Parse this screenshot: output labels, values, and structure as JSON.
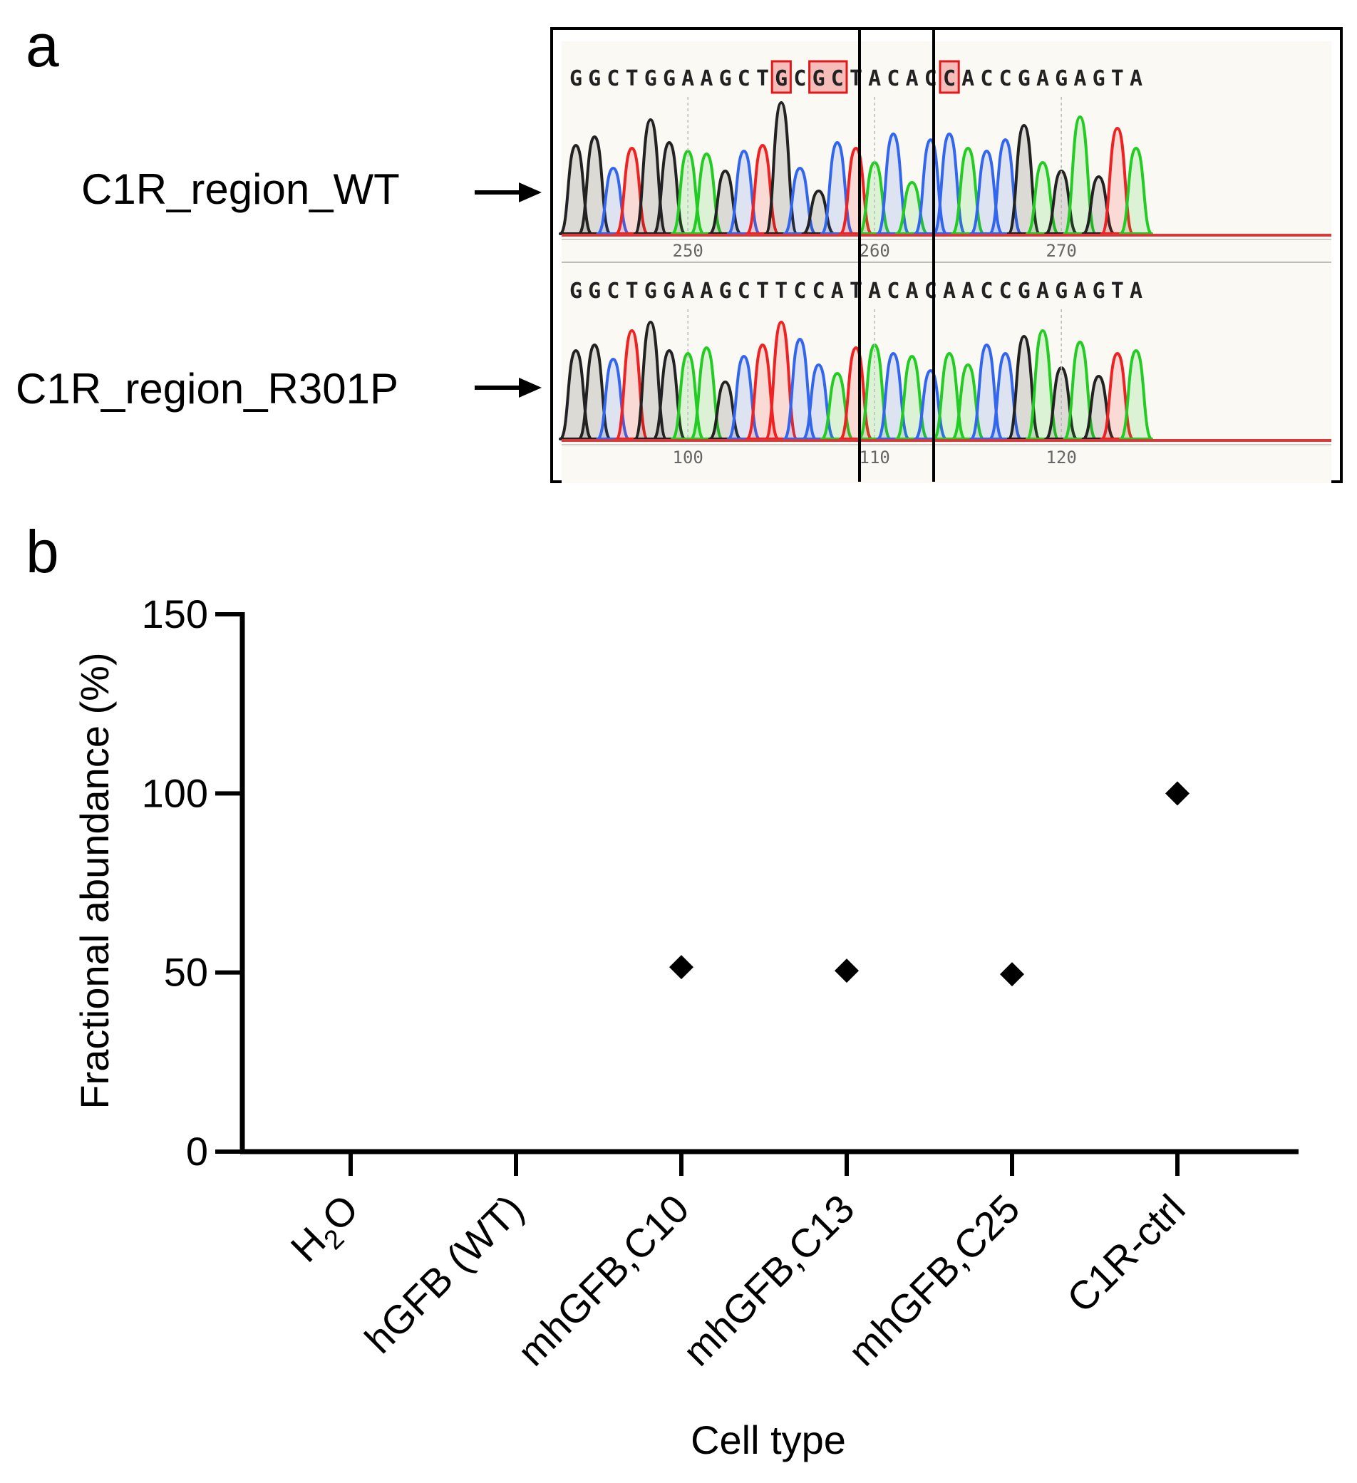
{
  "panels": {
    "a": "a",
    "b": "b"
  },
  "chromatogram": {
    "tracks": [
      {
        "label": "C1R_region_WT",
        "sequence": "GGCTGGAAGCTGCGCTACACCACCGAGAGTA",
        "positions": [
          "250",
          "260",
          "270"
        ],
        "highlighted_bases": [
          11,
          13,
          14,
          20
        ]
      },
      {
        "label": "C1R_region_R301P",
        "sequence": "GGCTGGAAGCTTCCATACACAACCGAGAGTA",
        "positions": [
          "100",
          "110",
          "120"
        ],
        "highlighted_bases": []
      }
    ],
    "boxed_codon_bases": [
      12,
      14
    ],
    "base_colors": {
      "A": "#22cc22",
      "C": "#3366ee",
      "G": "#222222",
      "T": "#ee2222"
    },
    "highlight_color": "#f08a8a"
  },
  "chart_data": {
    "type": "scatter",
    "title": "",
    "xlabel": "Cell type",
    "ylabel": "Fractional abundance (%)",
    "categories": [
      "H2O",
      "hGFB (WT)",
      "mhGFB,C10",
      "mhGFB,C13",
      "mhGFB,C25",
      "C1R-ctrl"
    ],
    "category_labels": [
      {
        "main": "H",
        "sub": "2",
        "rest": "O"
      },
      {
        "main": "hGFB (WT)",
        "sub": "",
        "rest": ""
      },
      {
        "main": "mhGFB,C10",
        "sub": "",
        "rest": ""
      },
      {
        "main": "mhGFB,C13",
        "sub": "",
        "rest": ""
      },
      {
        "main": "mhGFB,C25",
        "sub": "",
        "rest": ""
      },
      {
        "main": "C1R-ctrl",
        "sub": "",
        "rest": ""
      }
    ],
    "values": [
      null,
      null,
      51.5,
      50.5,
      49.5,
      100
    ],
    "ylim": [
      0,
      150
    ],
    "yticks": [
      0,
      50,
      100,
      150
    ],
    "marker": "diamond",
    "color": "#000000"
  }
}
